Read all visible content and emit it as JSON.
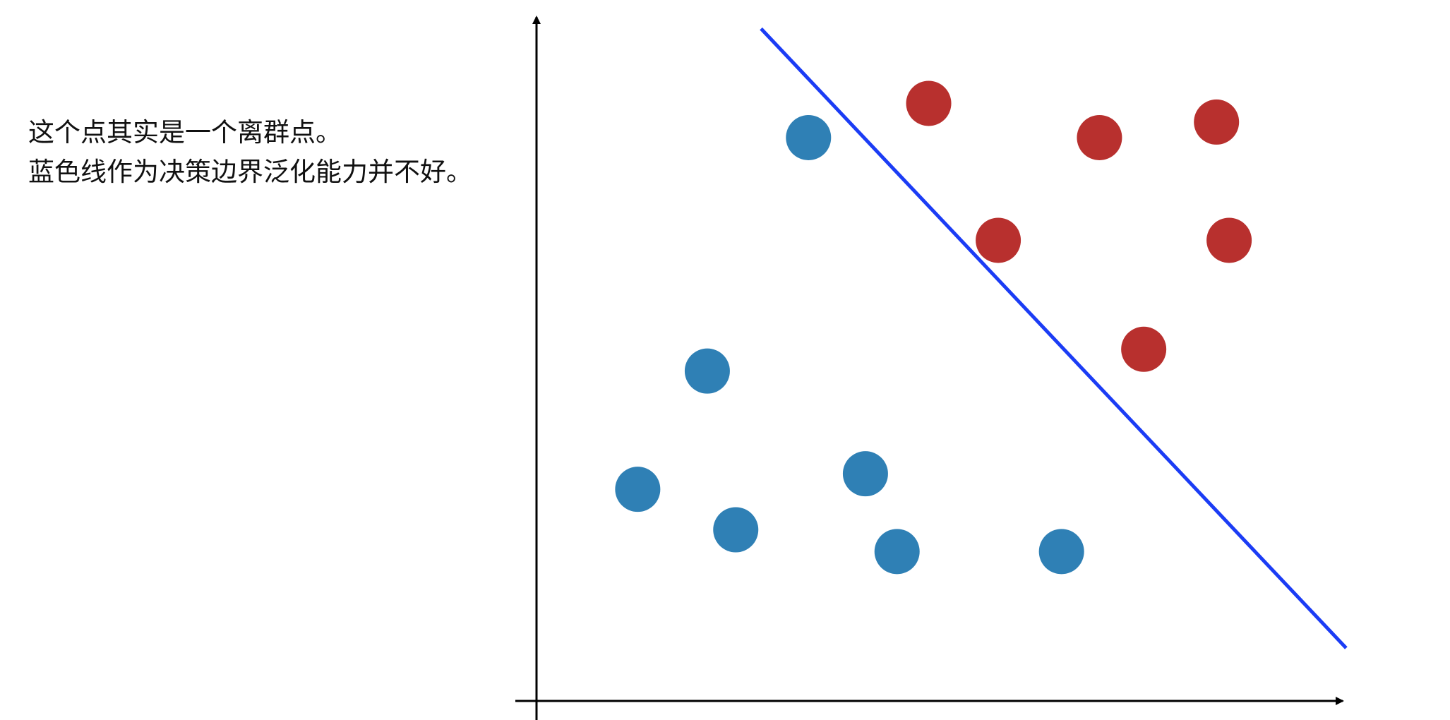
{
  "caption": {
    "line1": "这个点其实是一个离群点。",
    "line2": "蓝色线作为决策边界泛化能力并不好。"
  },
  "colors": {
    "blue_point": "#2f80b5",
    "red_point": "#b8302e",
    "boundary_line": "#1b3cf5",
    "axis": "#000000"
  },
  "chart_data": {
    "type": "scatter",
    "series": [
      {
        "color": "#2f80b5",
        "points": [
          [
            4.3,
            9.05
          ],
          [
            2.7,
            5.3
          ],
          [
            1.6,
            3.4
          ],
          [
            3.15,
            2.75
          ],
          [
            5.2,
            3.65
          ],
          [
            5.7,
            2.4
          ],
          [
            8.3,
            2.4
          ]
        ]
      },
      {
        "color": "#b8302e",
        "points": [
          [
            6.2,
            9.6
          ],
          [
            8.9,
            9.05
          ],
          [
            10.75,
            9.3
          ],
          [
            7.3,
            7.4
          ],
          [
            10.95,
            7.4
          ],
          [
            9.6,
            5.65
          ]
        ]
      }
    ],
    "boundary": {
      "color": "#1b3cf5",
      "from": [
        3.55,
        10.8
      ],
      "to": [
        12.8,
        0.85
      ]
    },
    "xlim": [
      0,
      12.5
    ],
    "ylim": [
      0,
      11
    ],
    "grid": false,
    "legend": "none"
  }
}
